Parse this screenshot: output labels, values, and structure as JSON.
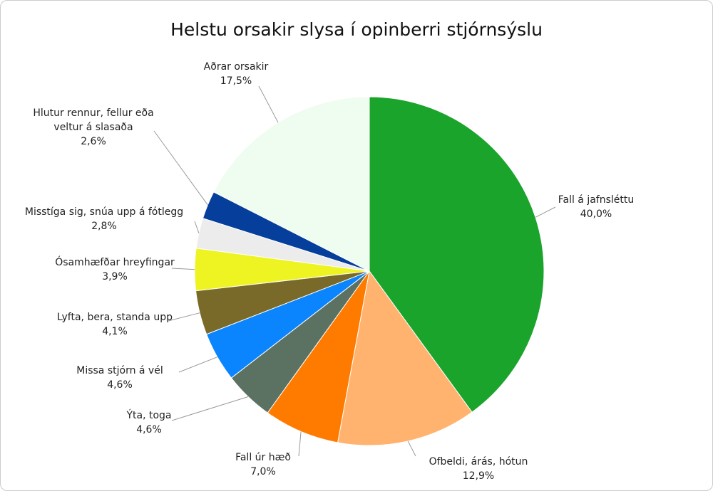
{
  "chart_data": {
    "type": "pie",
    "title": "Helstu orsakir slysa í opinberri stjórnsýslu",
    "categories": [
      "Fall á jafnsléttu",
      "Ofbeldi, árás, hótun",
      "Fall úr hæð",
      "Ýta, toga",
      "Missa stjórn á vél",
      "Lyfta, bera, standa upp",
      "Ósamhæfðar hreyfingar",
      "Misstíga sig, snúa upp á fótlegg",
      "Hlutur rennur, fellur eða veltur á slasaða",
      "Aðrar orsakir"
    ],
    "values": [
      40.0,
      12.9,
      7.0,
      4.6,
      4.6,
      4.1,
      3.9,
      2.8,
      2.6,
      17.5
    ],
    "value_labels": [
      "40,0%",
      "12,9%",
      "7,0%",
      "4,6%",
      "4,6%",
      "4,1%",
      "3,9%",
      "2,8%",
      "2,6%",
      "17,5%"
    ],
    "colors": [
      "#1ba42b",
      "#ffb36e",
      "#ff7b00",
      "#5b7162",
      "#0a85fd",
      "#7a6a2a",
      "#eef322",
      "#ececec",
      "#053f9b",
      "#effcf0"
    ]
  }
}
